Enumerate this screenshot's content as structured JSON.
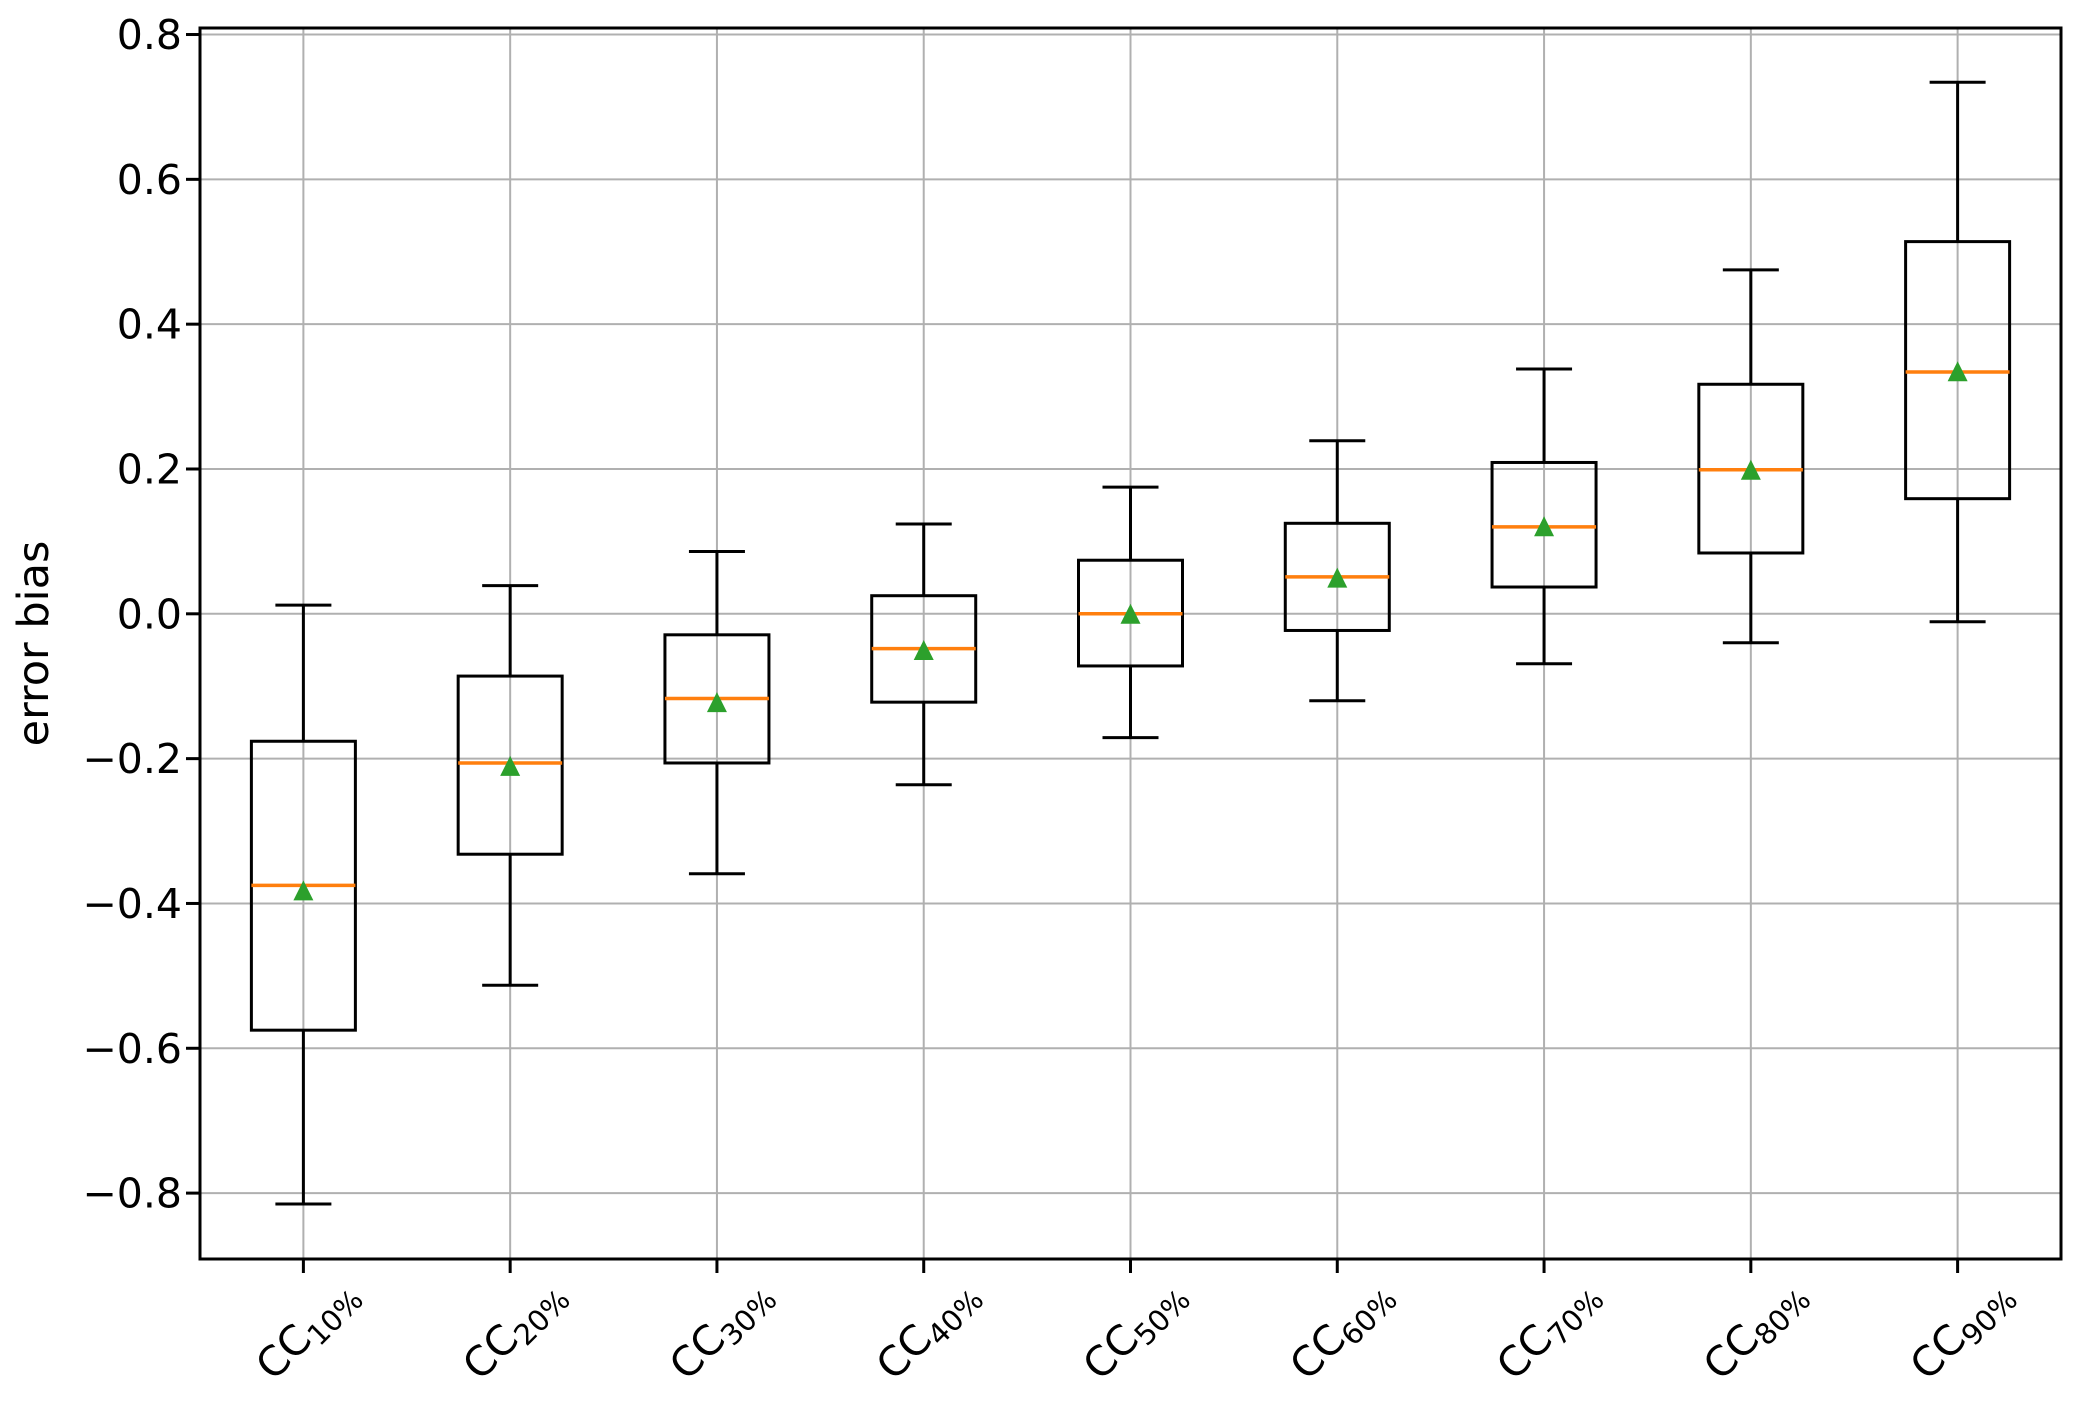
{
  "figure": {
    "background": "#ffffff"
  },
  "chart_data": {
    "type": "boxplot",
    "title": "",
    "xlabel": "",
    "ylabel": "error bias",
    "grid": true,
    "legend": "none",
    "xlim": [
      0.5,
      9.5
    ],
    "ylim": [
      -0.891,
      0.809
    ],
    "y_ticks": [
      {
        "value": 0.8,
        "label": "0.8"
      },
      {
        "value": 0.6,
        "label": "0.6"
      },
      {
        "value": 0.4,
        "label": "0.4"
      },
      {
        "value": 0.2,
        "label": "0.2"
      },
      {
        "value": 0.0,
        "label": "0.0"
      },
      {
        "value": -0.2,
        "label": "−0.2"
      },
      {
        "value": -0.4,
        "label": "−0.4"
      },
      {
        "value": -0.6,
        "label": "−0.6"
      },
      {
        "value": -0.8,
        "label": "−0.8"
      }
    ],
    "categories": [
      "CC10%",
      "CC20%",
      "CC30%",
      "CC40%",
      "CC50%",
      "CC60%",
      "CC70%",
      "CC80%",
      "CC90%"
    ],
    "x_tick_labels": [
      {
        "base": "CC",
        "subscript": "10%"
      },
      {
        "base": "CC",
        "subscript": "20%"
      },
      {
        "base": "CC",
        "subscript": "30%"
      },
      {
        "base": "CC",
        "subscript": "40%"
      },
      {
        "base": "CC",
        "subscript": "50%"
      },
      {
        "base": "CC",
        "subscript": "60%"
      },
      {
        "base": "CC",
        "subscript": "70%"
      },
      {
        "base": "CC",
        "subscript": "80%"
      },
      {
        "base": "CC",
        "subscript": "90%"
      }
    ],
    "boxes": [
      {
        "label": "CC10%",
        "position": 1,
        "whisker_low": -0.815,
        "q1": -0.575,
        "median": -0.375,
        "mean": -0.382,
        "q3": -0.176,
        "whisker_high": 0.012
      },
      {
        "label": "CC20%",
        "position": 2,
        "whisker_low": -0.513,
        "q1": -0.332,
        "median": -0.206,
        "mean": -0.21,
        "q3": -0.086,
        "whisker_high": 0.039
      },
      {
        "label": "CC30%",
        "position": 3,
        "whisker_low": -0.359,
        "q1": -0.206,
        "median": -0.117,
        "mean": -0.122,
        "q3": -0.029,
        "whisker_high": 0.086
      },
      {
        "label": "CC40%",
        "position": 4,
        "whisker_low": -0.236,
        "q1": -0.122,
        "median": -0.048,
        "mean": -0.05,
        "q3": 0.025,
        "whisker_high": 0.124
      },
      {
        "label": "CC50%",
        "position": 5,
        "whisker_low": -0.171,
        "q1": -0.072,
        "median": 0.0,
        "mean": 0.0,
        "q3": 0.074,
        "whisker_high": 0.175
      },
      {
        "label": "CC60%",
        "position": 6,
        "whisker_low": -0.12,
        "q1": -0.023,
        "median": 0.051,
        "mean": 0.05,
        "q3": 0.125,
        "whisker_high": 0.239
      },
      {
        "label": "CC70%",
        "position": 7,
        "whisker_low": -0.069,
        "q1": 0.037,
        "median": 0.12,
        "mean": 0.121,
        "q3": 0.209,
        "whisker_high": 0.338
      },
      {
        "label": "CC80%",
        "position": 8,
        "whisker_low": -0.04,
        "q1": 0.084,
        "median": 0.199,
        "mean": 0.199,
        "q3": 0.317,
        "whisker_high": 0.475
      },
      {
        "label": "CC90%",
        "position": 9,
        "whisker_low": -0.011,
        "q1": 0.159,
        "median": 0.334,
        "mean": 0.335,
        "q3": 0.514,
        "whisker_high": 0.734
      }
    ],
    "colors": {
      "box_line": "#000000",
      "whisker_line": "#000000",
      "median_line": "#ff7f0e",
      "mean_marker": "#2ca02c",
      "grid_line": "#b0b0b0",
      "spine": "#000000",
      "background": "#ffffff"
    }
  }
}
